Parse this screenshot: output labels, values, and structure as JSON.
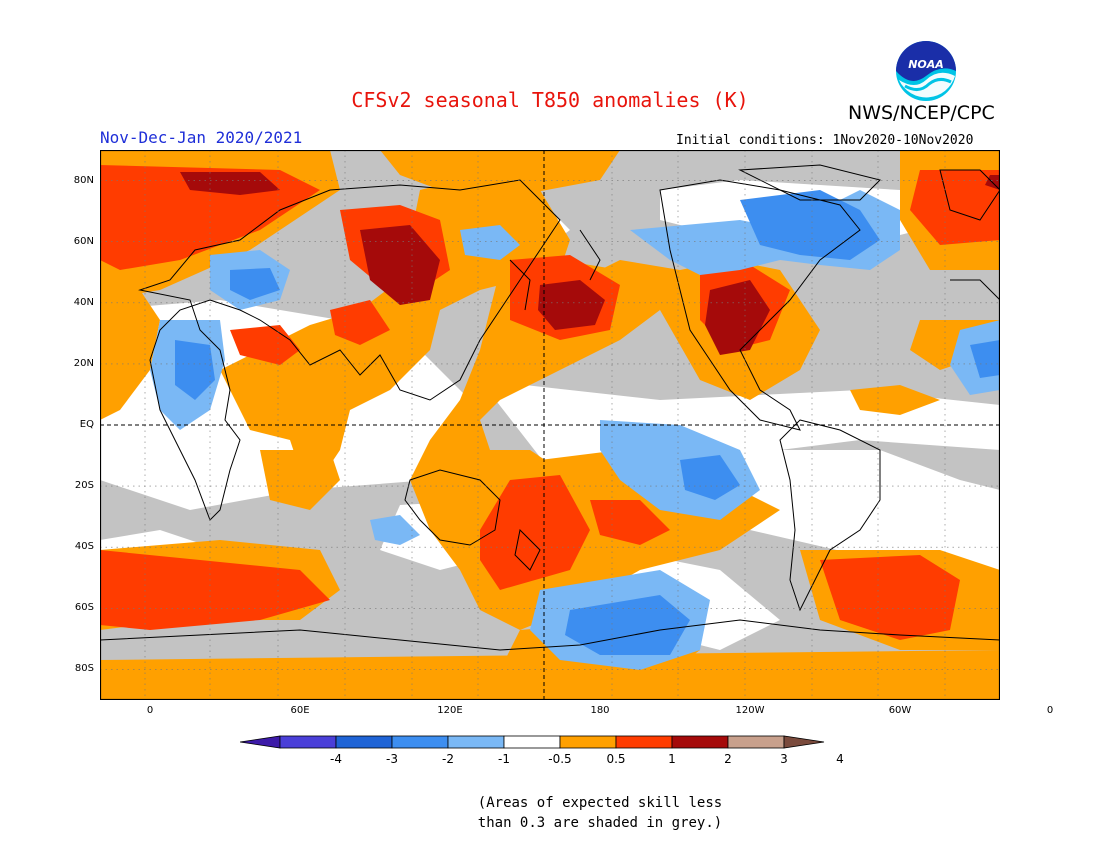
{
  "title": "CFSv2 seasonal T850 anomalies (K)",
  "organization": "NWS/NCEP/CPC",
  "logo_text": "NOAA",
  "season": "Nov-Dec-Jan 2020/2021",
  "initial_conditions": "Initial conditions: 1Nov2020-10Nov2020",
  "latitude_labels": [
    "80N",
    "60N",
    "40N",
    "20N",
    "EQ",
    "20S",
    "40S",
    "60S",
    "80S"
  ],
  "latitude_values": [
    80,
    60,
    40,
    20,
    0,
    -20,
    -40,
    -60,
    -80
  ],
  "longitude_labels": [
    "0",
    "60E",
    "120E",
    "180",
    "120W",
    "60W",
    "0"
  ],
  "longitude_values": [
    0,
    60,
    120,
    180,
    240,
    300,
    360
  ],
  "colorbar": {
    "tick_labels": [
      "-4",
      "-3",
      "-2",
      "-1",
      "-0.5",
      "0.5",
      "1",
      "2",
      "3",
      "4"
    ],
    "colors": [
      "#3c1aa8",
      "#4a3fd8",
      "#1f64d6",
      "#3d8ef0",
      "#7ab8f5",
      "#ffffff",
      "#ffa000",
      "#ff3c00",
      "#a50a0a",
      "#c8a08c",
      "#7a4a3c"
    ]
  },
  "note_line1": "(Areas of expected skill less",
  "note_line2": "than 0.3 are shaded in grey.)",
  "skill_color": "#c3c3c3"
}
